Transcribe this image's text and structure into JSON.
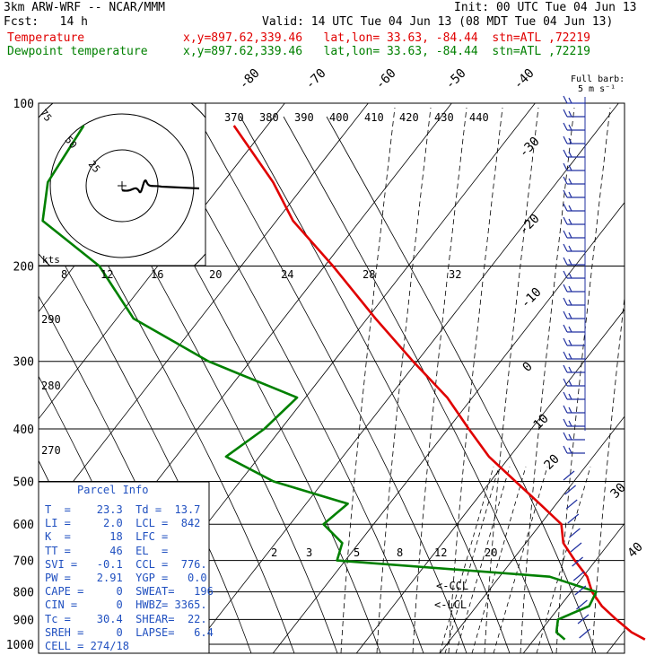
{
  "header": {
    "line1_left": "3km ARW-WRF -- NCAR/MMM",
    "line1_right": "Init: 00 UTC Tue 04 Jun 13",
    "line2_left": "Fcst:   14 h",
    "line2_right": "Valid: 14 UTC Tue 04 Jun 13 (08 MDT Tue 04 Jun 13)",
    "temp_label": "Temperature",
    "dew_label": "Dewpoint temperature",
    "temp_loc": "x,y=897.62,339.46   lat,lon= 33.63, -84.44  stn=ATL ,72219",
    "dew_loc": "x,y=897.62,339.46   lat,lon= 33.63, -84.44  stn=ATL ,72219",
    "temp_color": "#e00000",
    "dew_color": "#008000"
  },
  "barb_legend": {
    "line1": "Full barb:",
    "line2": "5 m s⁻¹"
  },
  "hodograph": {
    "ring_labels": [
      "75",
      "50",
      "25"
    ],
    "kts_label": "kts",
    "speed_ticks": [
      "8",
      "12",
      "16",
      "20",
      "24",
      "28",
      "32"
    ]
  },
  "theta_labels": [
    "370",
    "380",
    "390",
    "400",
    "410",
    "420",
    "430",
    "440"
  ],
  "theta_side_labels": [
    "290",
    "280",
    "270"
  ],
  "mixing_ratio_labels": [
    "2",
    "3",
    "5",
    "8",
    "12",
    "20"
  ],
  "ccl_label": "<-CCL",
  "lcl_label": "<-LCL",
  "parcel_info": {
    "title": "Parcel Info",
    "rows": [
      "T  =    23.3  Td =  13.7",
      "LI =     2.0  LCL =  842",
      "K  =      18  LFC =",
      "TT =      46  EL  =",
      "SVI =   -0.1  CCL =  776.",
      "PW =    2.91  YGP =   0.0",
      "CAPE =     0  SWEAT=   196",
      "CIN =      0  HWBZ= 3365.",
      "Tc =    30.4  SHEAR=  22.",
      "SREH =     0  LAPSE=   6.4",
      "CELL = 274/18"
    ]
  },
  "chart_data": {
    "type": "line",
    "title": "",
    "xlabel": "",
    "ylabel": "",
    "y_scale": "log-pressure (hPa)",
    "ylim": [
      1000,
      100
    ],
    "pressure_levels": [
      100,
      200,
      300,
      400,
      500,
      600,
      700,
      800,
      900,
      1000
    ],
    "isotherm_labels": [
      "-80",
      "-70",
      "-60",
      "-50",
      "-40",
      "-30",
      "-20",
      "-10",
      "0",
      "10",
      "20",
      "30",
      "40"
    ],
    "series": [
      {
        "name": "Temperature",
        "color": "#e00000",
        "points": [
          [
            110,
            -74
          ],
          [
            140,
            -64
          ],
          [
            165,
            -58
          ],
          [
            200,
            -49
          ],
          [
            250,
            -39
          ],
          [
            300,
            -30.5
          ],
          [
            350,
            -23
          ],
          [
            400,
            -17.5
          ],
          [
            450,
            -12.5
          ],
          [
            500,
            -7
          ],
          [
            550,
            -2
          ],
          [
            600,
            2.5
          ],
          [
            650,
            4.5
          ],
          [
            700,
            7.5
          ],
          [
            750,
            10.5
          ],
          [
            800,
            12.5
          ],
          [
            850,
            15
          ],
          [
            900,
            18
          ],
          [
            950,
            21
          ],
          [
            980,
            23.3
          ]
        ]
      },
      {
        "name": "Dewpoint temperature",
        "color": "#008000",
        "points": [
          [
            110,
            -92
          ],
          [
            140,
            -91
          ],
          [
            165,
            -88
          ],
          [
            200,
            -77
          ],
          [
            250,
            -68
          ],
          [
            300,
            -55
          ],
          [
            350,
            -41
          ],
          [
            400,
            -42
          ],
          [
            450,
            -44
          ],
          [
            500,
            -36
          ],
          [
            550,
            -25
          ],
          [
            600,
            -26
          ],
          [
            650,
            -22
          ],
          [
            700,
            -21
          ],
          [
            750,
            6
          ],
          [
            800,
            13
          ],
          [
            850,
            13.5
          ],
          [
            900,
            11
          ],
          [
            950,
            12
          ],
          [
            980,
            13.7
          ]
        ]
      }
    ]
  }
}
